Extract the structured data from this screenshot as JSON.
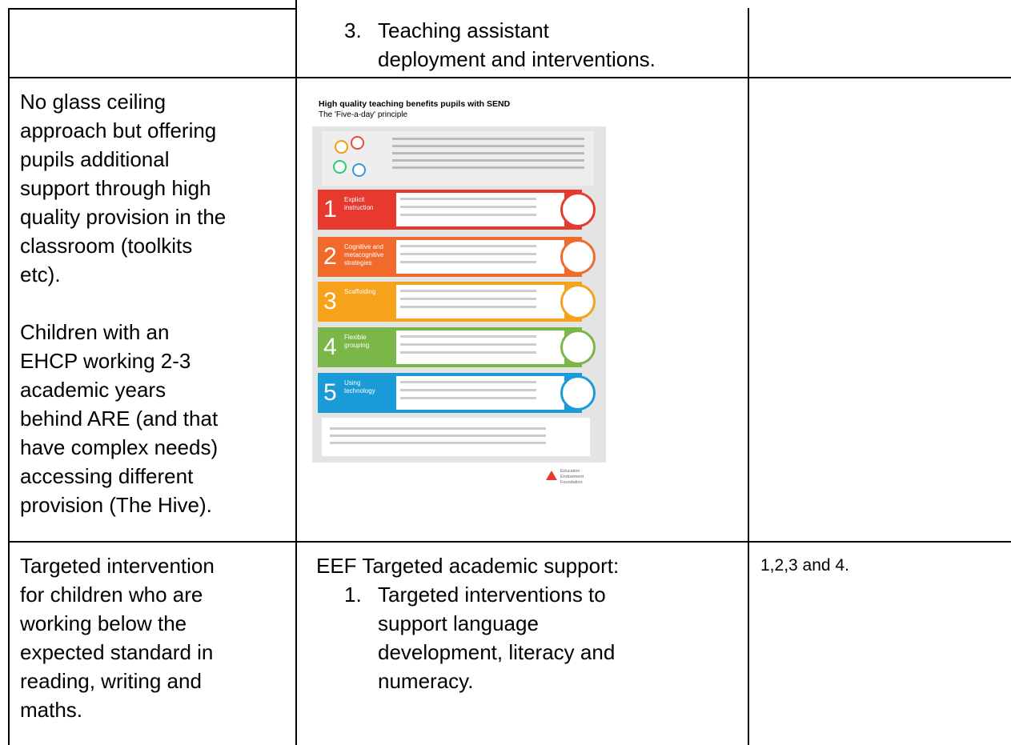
{
  "table": {
    "row1": {
      "list_item": {
        "marker": "3.",
        "lines": [
          "Teaching assistant",
          "deployment and interventions."
        ]
      }
    },
    "row2": {
      "description_1": [
        "No glass ceiling",
        "approach but offering",
        "pupils additional",
        "support through high",
        "quality provision in the",
        "classroom (toolkits",
        "etc)."
      ],
      "description_2": [
        "Children with an",
        "EHCP working 2-3",
        "academic years",
        "behind ARE (and that",
        "have complex needs)",
        "accessing different",
        "provision (The Hive)."
      ],
      "infographic": {
        "title": "High quality teaching benefits pupils with SEND",
        "subtitle": "The 'Five-a-day' principle",
        "items": [
          {
            "number": "1",
            "label": [
              "Explicit",
              "instruction"
            ],
            "color": "#e8392f"
          },
          {
            "number": "2",
            "label": [
              "Cognitive and",
              "metacognitive",
              "strategies"
            ],
            "color": "#f26a2b"
          },
          {
            "number": "3",
            "label": [
              "Scaffolding"
            ],
            "color": "#f7a21b"
          },
          {
            "number": "4",
            "label": [
              "Flexible",
              "grouping"
            ],
            "color": "#7ab648"
          },
          {
            "number": "5",
            "label": [
              "Using",
              "technology"
            ],
            "color": "#1a9ad6"
          }
        ],
        "footer": [
          "Education",
          "Endowment",
          "Foundation"
        ]
      }
    },
    "row3": {
      "description": [
        "Targeted intervention",
        "for children who are",
        "working below the",
        "expected standard in",
        "reading, writing and",
        "maths."
      ],
      "heading": "EEF Targeted academic support:",
      "list_item": {
        "marker": "1.",
        "lines": [
          "Targeted interventions to",
          "support language",
          "development, literacy and",
          "numeracy."
        ]
      },
      "references": "1,2,3 and 4."
    }
  }
}
